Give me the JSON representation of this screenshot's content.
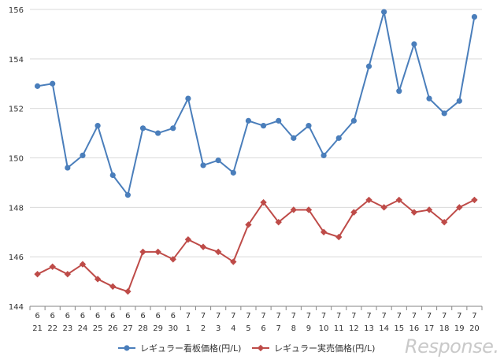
{
  "chart_data": {
    "type": "line",
    "categories": [
      {
        "month": "6",
        "day": "21"
      },
      {
        "month": "6",
        "day": "22"
      },
      {
        "month": "6",
        "day": "23"
      },
      {
        "month": "6",
        "day": "24"
      },
      {
        "month": "6",
        "day": "25"
      },
      {
        "month": "6",
        "day": "26"
      },
      {
        "month": "6",
        "day": "27"
      },
      {
        "month": "6",
        "day": "28"
      },
      {
        "month": "6",
        "day": "29"
      },
      {
        "month": "6",
        "day": "30"
      },
      {
        "month": "7",
        "day": "1"
      },
      {
        "month": "7",
        "day": "2"
      },
      {
        "month": "7",
        "day": "3"
      },
      {
        "month": "7",
        "day": "4"
      },
      {
        "month": "7",
        "day": "5"
      },
      {
        "month": "7",
        "day": "6"
      },
      {
        "month": "7",
        "day": "7"
      },
      {
        "month": "7",
        "day": "8"
      },
      {
        "month": "7",
        "day": "9"
      },
      {
        "month": "7",
        "day": "10"
      },
      {
        "month": "7",
        "day": "11"
      },
      {
        "month": "7",
        "day": "12"
      },
      {
        "month": "7",
        "day": "13"
      },
      {
        "month": "7",
        "day": "14"
      },
      {
        "month": "7",
        "day": "15"
      },
      {
        "month": "7",
        "day": "16"
      },
      {
        "month": "7",
        "day": "17"
      },
      {
        "month": "7",
        "day": "18"
      },
      {
        "month": "7",
        "day": "19"
      },
      {
        "month": "7",
        "day": "20"
      }
    ],
    "series": [
      {
        "name": "レギュラー看板価格(円/L)",
        "color": "#4a7ebb",
        "marker": "circle",
        "values": [
          152.9,
          153.0,
          149.6,
          150.1,
          151.3,
          149.3,
          148.5,
          151.2,
          151.0,
          151.2,
          152.4,
          149.7,
          149.9,
          149.4,
          151.5,
          151.3,
          151.5,
          150.8,
          151.3,
          150.1,
          150.8,
          151.5,
          153.7,
          155.9,
          152.7,
          154.6,
          152.4,
          151.8,
          152.3,
          155.7
        ]
      },
      {
        "name": "レギュラー実売価格(円/L)",
        "color": "#be4b48",
        "marker": "diamond",
        "values": [
          145.3,
          145.6,
          145.3,
          145.7,
          145.1,
          144.8,
          144.6,
          146.2,
          146.2,
          145.9,
          146.7,
          146.4,
          146.2,
          145.8,
          147.3,
          148.2,
          147.4,
          147.9,
          147.9,
          147.0,
          146.8,
          147.8,
          148.3,
          148.0,
          148.3,
          147.8,
          147.9,
          147.4,
          148.0,
          148.3
        ]
      }
    ],
    "yticks": [
      "144",
      "146",
      "148",
      "150",
      "152",
      "154",
      "156"
    ],
    "ylim": [
      144,
      156
    ],
    "grid": true,
    "legend_position": "bottom",
    "title": "",
    "xlabel": "",
    "ylabel": ""
  },
  "watermark": "Response."
}
